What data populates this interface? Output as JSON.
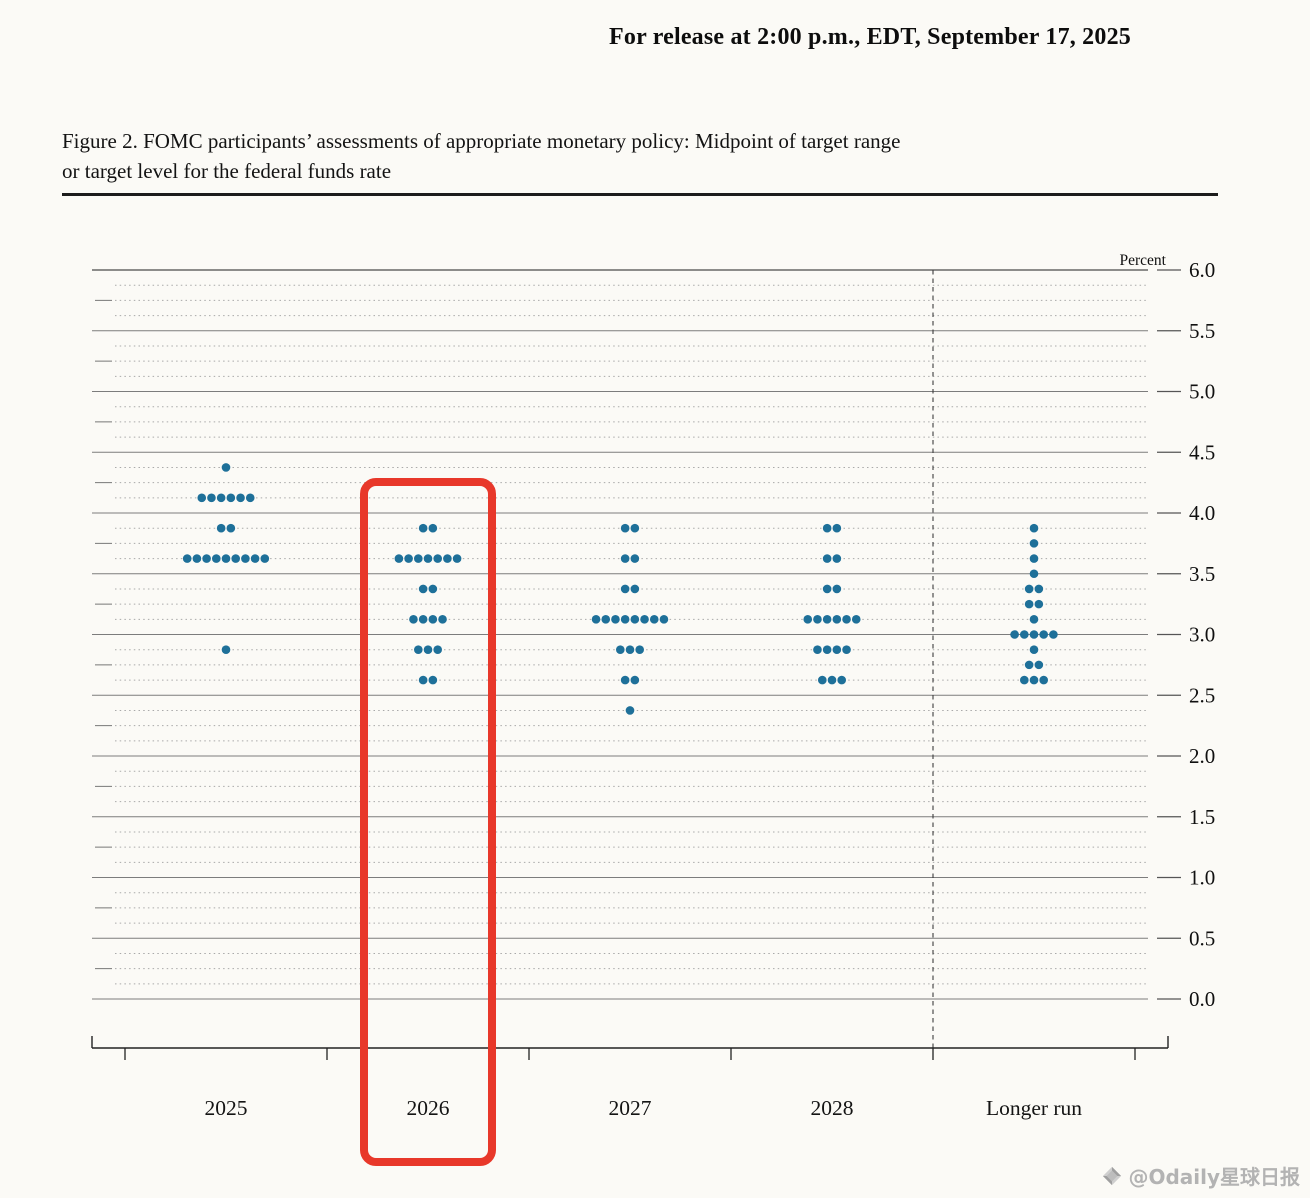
{
  "release_line": "For release at 2:00 p.m., EDT, September 17, 2025",
  "figure": {
    "title_line1": "Figure 2.  FOMC participants’ assessments of appropriate monetary policy:  Midpoint of target range",
    "title_line2": "or target level for the federal funds rate"
  },
  "watermark": {
    "text": "@Odaily星球日报"
  },
  "chart_data": {
    "type": "scatter",
    "variant": "fomc-dot-plot",
    "title": "Figure 2. FOMC participants’ assessments of appropriate monetary policy: Midpoint of target range or target level for the federal funds rate",
    "ylabel": "Percent",
    "ylim": [
      0.0,
      6.0
    ],
    "y_tick_step": 0.5,
    "y_tick_labels": [
      "6.0",
      "5.5",
      "5.0",
      "4.5",
      "4.0",
      "3.5",
      "3.0",
      "2.5",
      "2.0",
      "1.5",
      "1.0",
      "0.5",
      "0.0"
    ],
    "minor_grid_step": 0.125,
    "grid": true,
    "legend": "none",
    "categories": [
      "2025",
      "2026",
      "2027",
      "2028",
      "Longer run"
    ],
    "separator_before_category": "Longer run",
    "dot_color": "#1e7099",
    "series": [
      {
        "category": "2025",
        "dots": [
          {
            "rate": 4.375,
            "count": 1
          },
          {
            "rate": 4.125,
            "count": 6
          },
          {
            "rate": 3.875,
            "count": 2
          },
          {
            "rate": 3.625,
            "count": 9
          },
          {
            "rate": 2.875,
            "count": 1
          }
        ]
      },
      {
        "category": "2026",
        "dots": [
          {
            "rate": 3.875,
            "count": 2
          },
          {
            "rate": 3.625,
            "count": 7
          },
          {
            "rate": 3.375,
            "count": 2
          },
          {
            "rate": 3.125,
            "count": 4
          },
          {
            "rate": 2.875,
            "count": 3
          },
          {
            "rate": 2.625,
            "count": 2
          }
        ]
      },
      {
        "category": "2027",
        "dots": [
          {
            "rate": 3.875,
            "count": 2
          },
          {
            "rate": 3.625,
            "count": 2
          },
          {
            "rate": 3.375,
            "count": 2
          },
          {
            "rate": 3.125,
            "count": 8
          },
          {
            "rate": 2.875,
            "count": 3
          },
          {
            "rate": 2.625,
            "count": 2
          },
          {
            "rate": 2.375,
            "count": 1
          }
        ]
      },
      {
        "category": "2028",
        "dots": [
          {
            "rate": 3.875,
            "count": 2
          },
          {
            "rate": 3.625,
            "count": 2
          },
          {
            "rate": 3.375,
            "count": 2
          },
          {
            "rate": 3.125,
            "count": 6
          },
          {
            "rate": 2.875,
            "count": 4
          },
          {
            "rate": 2.625,
            "count": 3
          }
        ]
      },
      {
        "category": "Longer run",
        "dots": [
          {
            "rate": 3.875,
            "count": 1
          },
          {
            "rate": 3.75,
            "count": 1
          },
          {
            "rate": 3.625,
            "count": 1
          },
          {
            "rate": 3.5,
            "count": 1
          },
          {
            "rate": 3.375,
            "count": 2
          },
          {
            "rate": 3.25,
            "count": 2
          },
          {
            "rate": 3.125,
            "count": 1
          },
          {
            "rate": 3.0,
            "count": 5
          },
          {
            "rate": 2.875,
            "count": 1
          },
          {
            "rate": 2.75,
            "count": 2
          },
          {
            "rate": 2.625,
            "count": 3
          }
        ]
      }
    ],
    "highlight": {
      "category": "2026",
      "color": "#e8382a"
    }
  }
}
